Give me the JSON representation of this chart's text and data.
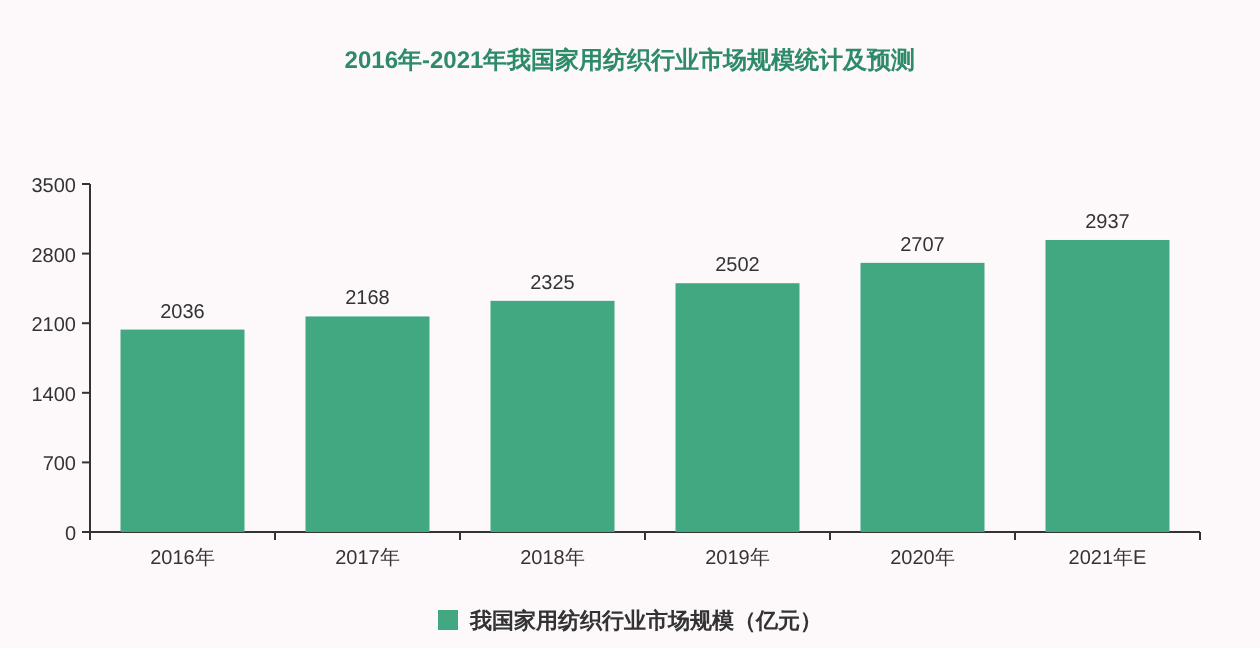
{
  "chart_data": {
    "type": "bar",
    "title": "2016年-2021年我国家用纺织行业市场规模统计及预测",
    "categories": [
      "2016年",
      "2017年",
      "2018年",
      "2019年",
      "2020年",
      "2021年E"
    ],
    "series": [
      {
        "name": "我国家用纺织行业市场规模（亿元）",
        "color": "#41a882",
        "values": [
          2036,
          2168,
          2325,
          2502,
          2707,
          2937
        ]
      }
    ],
    "ylim": [
      0,
      3500
    ],
    "yticks": [
      0,
      700,
      1400,
      2100,
      2800,
      3500
    ],
    "data_labels": true,
    "legend": "bottom"
  }
}
